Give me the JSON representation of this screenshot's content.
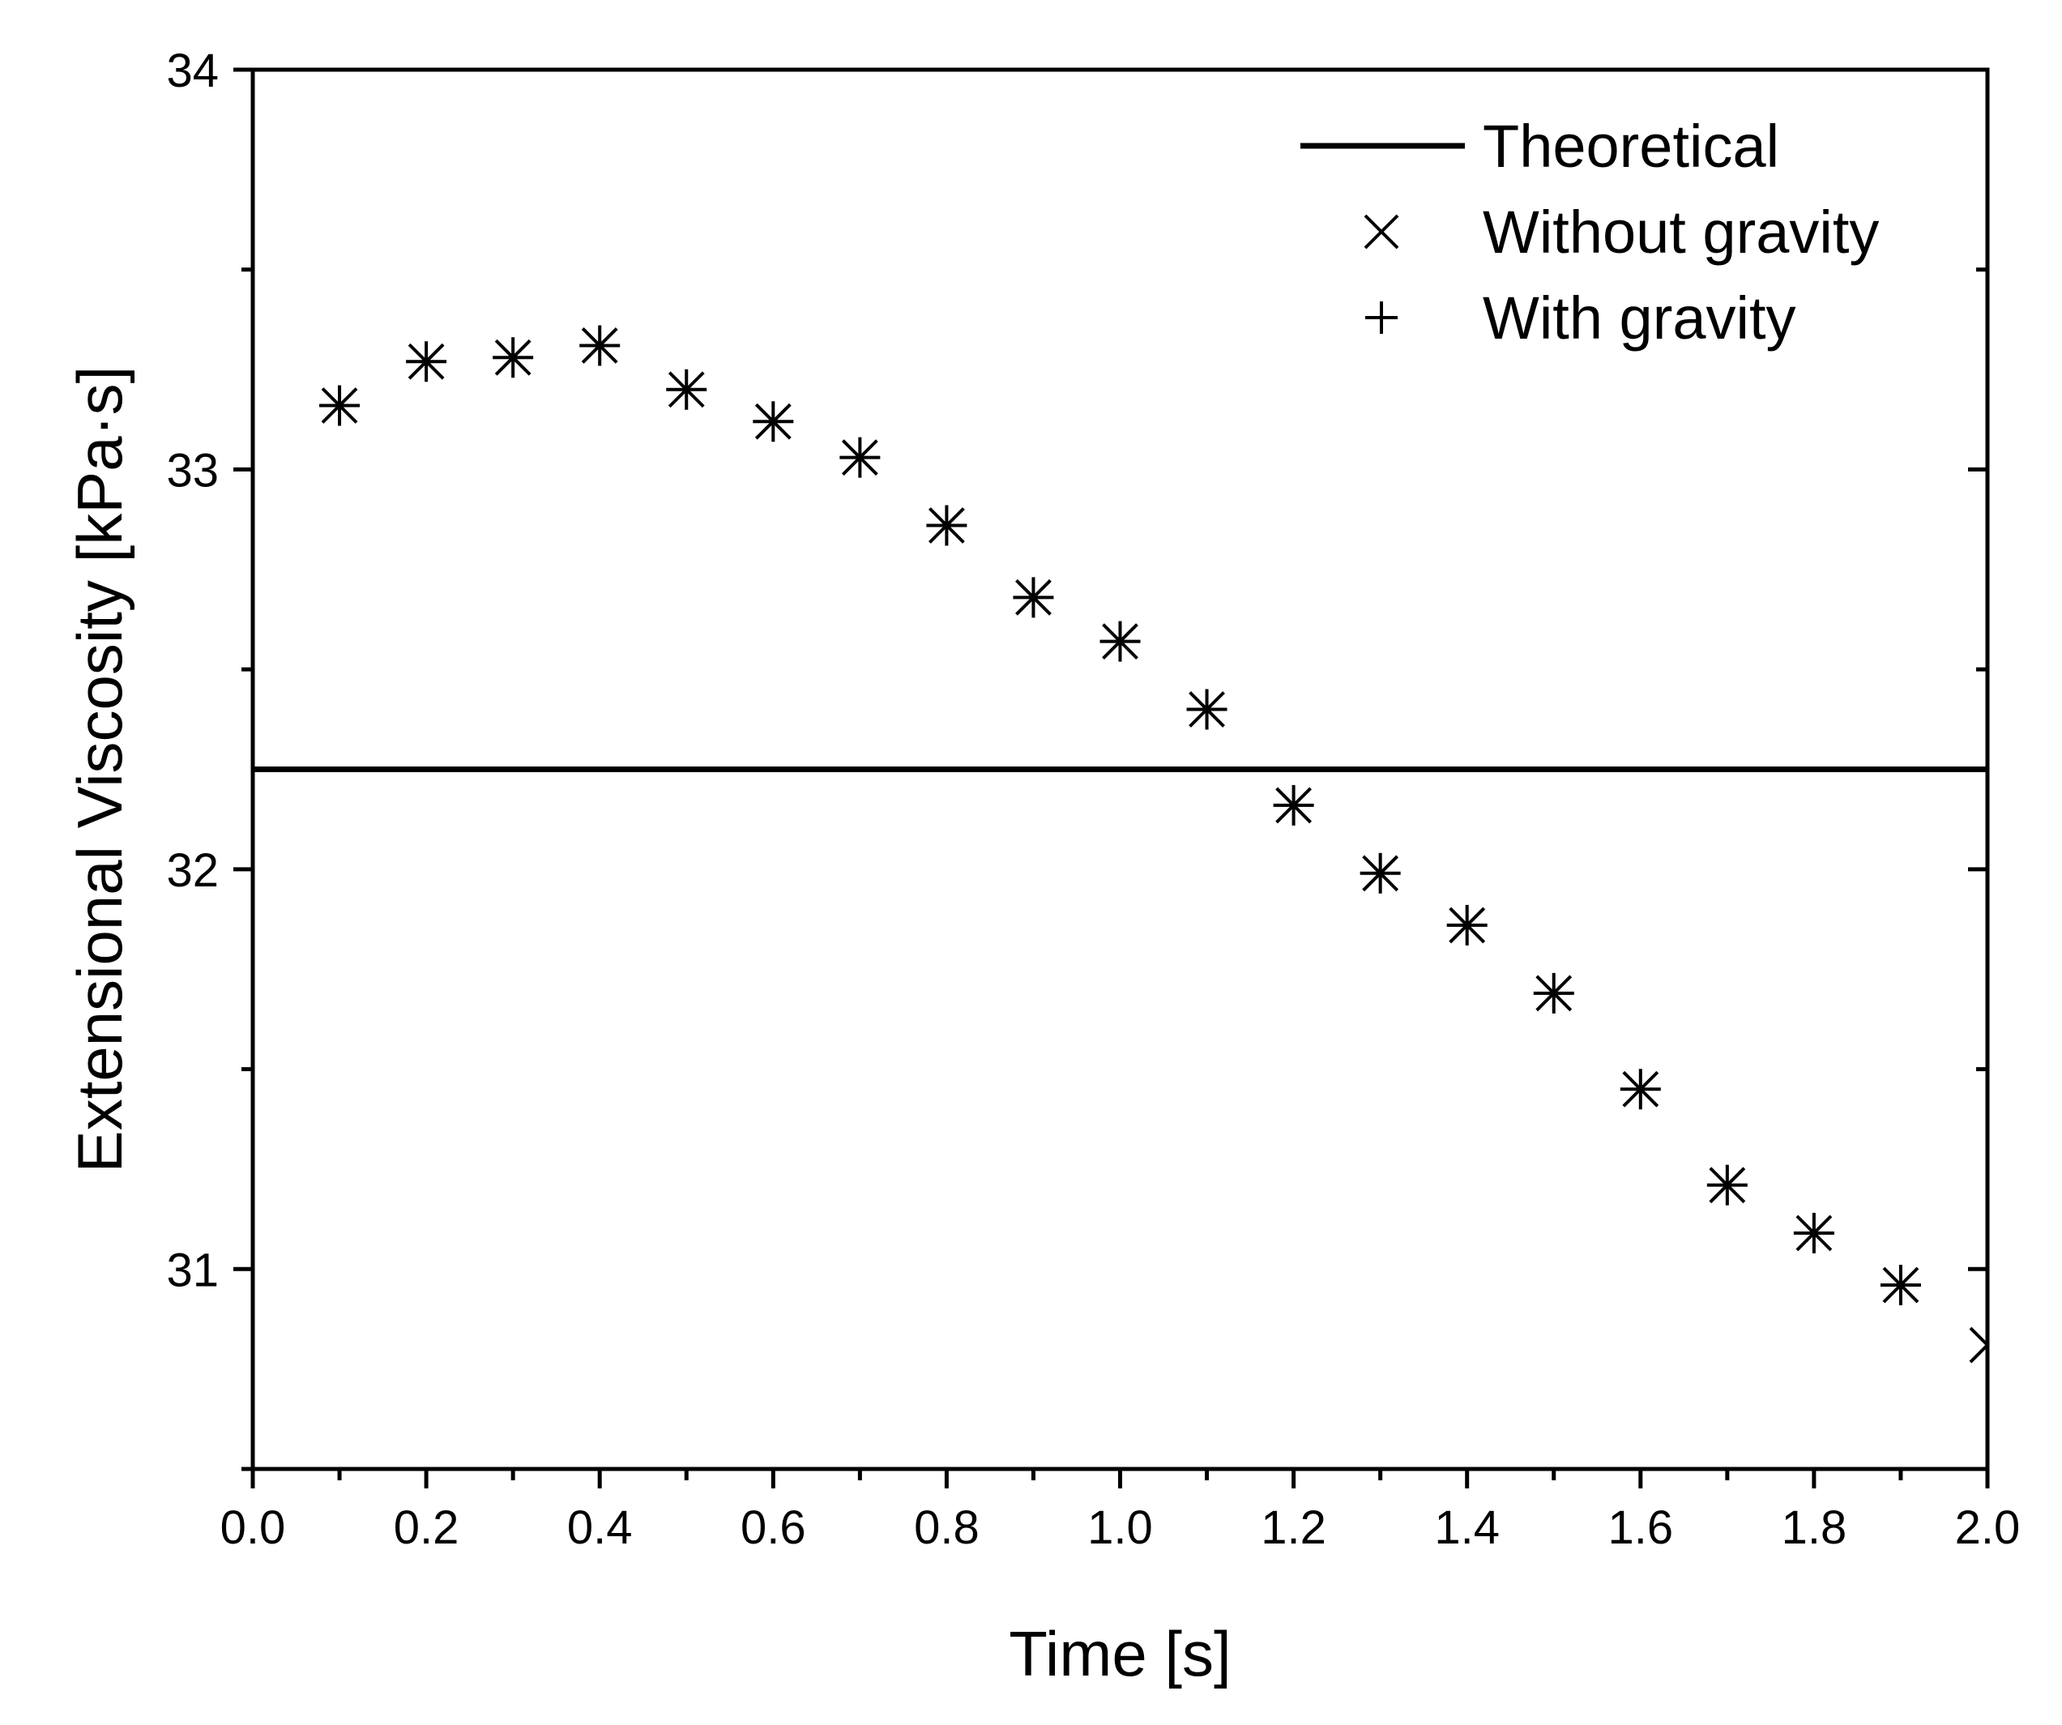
{
  "chart_data": {
    "type": "scatter",
    "title": "",
    "xlabel": "Time [s]",
    "ylabel": "Extensional Viscosity [kPa·s]",
    "xlim": [
      0.0,
      2.0
    ],
    "ylim": [
      30.5,
      34.0
    ],
    "x_major_ticks": [
      0.0,
      0.2,
      0.4,
      0.6,
      0.8,
      1.0,
      1.2,
      1.4,
      1.6,
      1.8,
      2.0
    ],
    "x_tick_labels": [
      "0.0",
      "0.2",
      "0.4",
      "0.6",
      "0.8",
      "1.0",
      "1.2",
      "1.4",
      "1.6",
      "1.8",
      "2.0"
    ],
    "x_minor_ticks": [
      0.1,
      0.3,
      0.5,
      0.7,
      0.9,
      1.1,
      1.3,
      1.5,
      1.7,
      1.9
    ],
    "y_major_ticks": [
      31,
      32,
      33,
      34
    ],
    "y_tick_labels": [
      "31",
      "32",
      "33",
      "34"
    ],
    "y_minor_ticks": [
      30.5,
      31.5,
      32.5,
      33.5
    ],
    "grid": false,
    "legend_position": "top-right",
    "series": [
      {
        "name": "Theoretical",
        "kind": "hline",
        "marker": "line",
        "value": 32.25
      },
      {
        "name": "Without gravity",
        "kind": "scatter",
        "marker": "x",
        "x": [
          0.1,
          0.2,
          0.3,
          0.4,
          0.5,
          0.6,
          0.7,
          0.8,
          0.9,
          1.0,
          1.1,
          1.2,
          1.3,
          1.4,
          1.5,
          1.6,
          1.7,
          1.8,
          1.9,
          2.0
        ],
        "y": [
          33.16,
          33.27,
          33.28,
          33.31,
          33.2,
          33.12,
          33.03,
          32.86,
          32.68,
          32.57,
          32.4,
          32.16,
          31.99,
          31.86,
          31.69,
          31.45,
          31.21,
          31.09,
          30.96,
          30.81
        ]
      },
      {
        "name": "With gravity",
        "kind": "scatter",
        "marker": "+",
        "x": [
          0.1,
          0.2,
          0.3,
          0.4,
          0.5,
          0.6,
          0.7,
          0.8,
          0.9,
          1.0,
          1.1,
          1.2,
          1.3,
          1.4,
          1.5,
          1.6,
          1.7,
          1.8,
          1.9
        ],
        "y": [
          33.16,
          33.27,
          33.28,
          33.31,
          33.2,
          33.12,
          33.03,
          32.86,
          32.68,
          32.57,
          32.4,
          32.16,
          31.99,
          31.86,
          31.69,
          31.45,
          31.21,
          31.09,
          30.96
        ]
      }
    ]
  }
}
